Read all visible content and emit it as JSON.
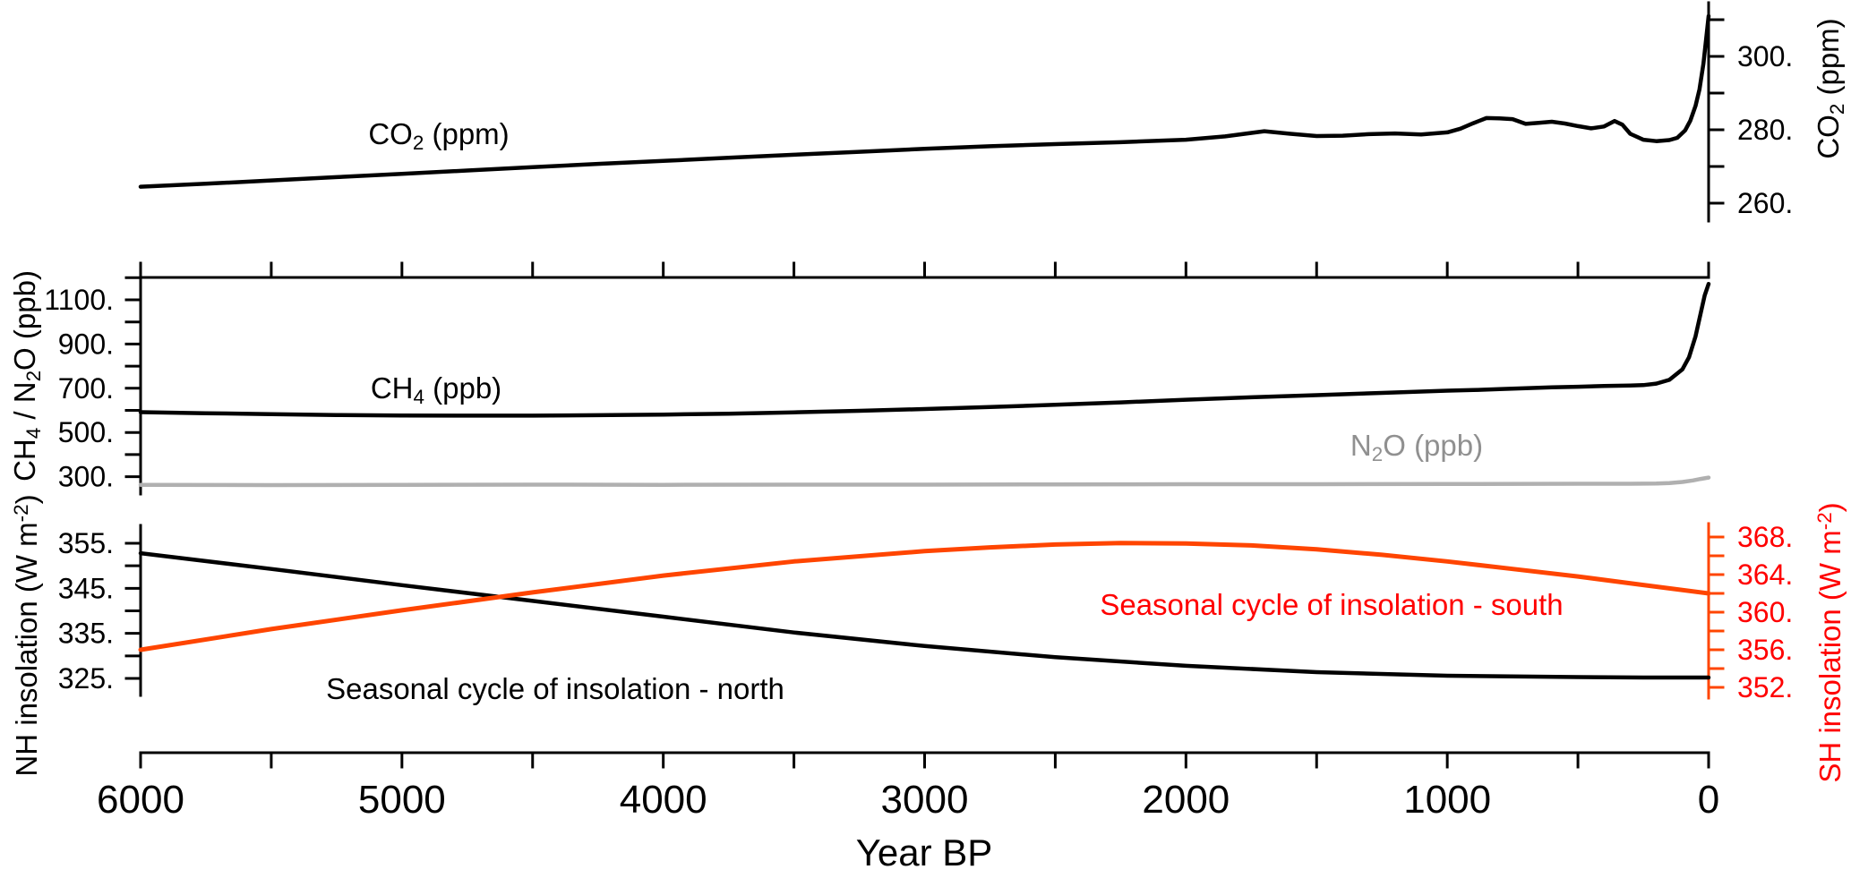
{
  "colors": {
    "black": "#000000",
    "n2o_line": "#b0b0b0",
    "n2o_text": "#909090",
    "red_text": "#ff0000",
    "sh_line": "#ff4500",
    "background": "#ffffff"
  },
  "labels": {
    "co2_series": {
      "pre": "CO",
      "sub": "2",
      "post": " (ppm)"
    },
    "co2_axis": {
      "pre": "CO",
      "sub": "2",
      "post": " (ppm)"
    },
    "ch4_series": {
      "pre": "CH",
      "sub": "4",
      "post": " (ppb)"
    },
    "n2o_series": {
      "pre": "N",
      "sub": "2",
      "post": "O (ppb)"
    },
    "ch4_n2o_axis": {
      "p1": "CH",
      "s1": "4",
      "p2": " / N",
      "s2": "2",
      "p3": "O (ppb)"
    },
    "nh_axis": {
      "pre": "NH insolation (W m",
      "sup": "-2",
      "post": ")"
    },
    "sh_axis": {
      "pre": "SH insolation (W m",
      "sup": "-2",
      "post": ")"
    },
    "north_series": "Seasonal cycle of insolation -  north",
    "south_series": "Seasonal cycle of insolation -  south",
    "x_axis_title": "Year BP"
  },
  "x_axis": {
    "title": "Year BP",
    "range": [
      6000,
      0
    ],
    "direction": "reversed",
    "major_ticks": [
      6000,
      5000,
      4000,
      3000,
      2000,
      1000,
      0
    ],
    "major_labels": [
      "6000",
      "5000",
      "4000",
      "3000",
      "2000",
      "1000",
      "0"
    ],
    "minor_step": 500
  },
  "chart_data": [
    {
      "type": "line",
      "panel": "co2",
      "title": "CO2 (ppm)",
      "y_axis": {
        "side": "right",
        "label": "CO2 (ppm)",
        "range": [
          255,
          315
        ],
        "major_ticks": [
          300,
          280,
          260
        ],
        "major_labels": [
          "300.",
          "280.",
          "260."
        ],
        "minor_ticks": [
          310,
          290,
          270
        ],
        "grid": false
      },
      "series": [
        {
          "name": "CO2 (ppm)",
          "units": "ppm",
          "color": "#000000",
          "points": [
            [
              6000,
              264.5
            ],
            [
              5750,
              265.3
            ],
            [
              5500,
              266.2
            ],
            [
              5250,
              267.1
            ],
            [
              5000,
              268.0
            ],
            [
              4750,
              268.9
            ],
            [
              4500,
              269.8
            ],
            [
              4250,
              270.7
            ],
            [
              4000,
              271.5
            ],
            [
              3750,
              272.4
            ],
            [
              3500,
              273.2
            ],
            [
              3250,
              274.0
            ],
            [
              3000,
              274.8
            ],
            [
              2750,
              275.5
            ],
            [
              2500,
              276.1
            ],
            [
              2250,
              276.6
            ],
            [
              2000,
              277.3
            ],
            [
              1850,
              278.2
            ],
            [
              1700,
              279.6
            ],
            [
              1600,
              278.9
            ],
            [
              1500,
              278.3
            ],
            [
              1400,
              278.4
            ],
            [
              1300,
              278.8
            ],
            [
              1200,
              279.0
            ],
            [
              1100,
              278.7
            ],
            [
              1000,
              279.3
            ],
            [
              950,
              280.3
            ],
            [
              900,
              281.8
            ],
            [
              850,
              283.2
            ],
            [
              800,
              283.1
            ],
            [
              750,
              282.9
            ],
            [
              700,
              281.6
            ],
            [
              650,
              281.9
            ],
            [
              600,
              282.2
            ],
            [
              550,
              281.7
            ],
            [
              500,
              281.0
            ],
            [
              450,
              280.4
            ],
            [
              400,
              280.9
            ],
            [
              360,
              282.4
            ],
            [
              330,
              281.4
            ],
            [
              300,
              278.9
            ],
            [
              250,
              277.3
            ],
            [
              200,
              276.9
            ],
            [
              150,
              277.2
            ],
            [
              120,
              277.8
            ],
            [
              90,
              279.8
            ],
            [
              70,
              282.5
            ],
            [
              50,
              286.5
            ],
            [
              35,
              291.0
            ],
            [
              20,
              298.0
            ],
            [
              10,
              304.5
            ],
            [
              0,
              311.0
            ]
          ]
        }
      ]
    },
    {
      "type": "line",
      "panel": "ch4_n2o",
      "title": "CH4 / N2O (ppb)",
      "y_axis": {
        "side": "left",
        "label": "CH4 / N2O (ppb)",
        "range": [
          220,
          1260
        ],
        "major_ticks": [
          1100,
          900,
          700,
          500,
          300
        ],
        "major_labels": [
          "1100.",
          "900.",
          "700.",
          "500.",
          "300."
        ],
        "minor_ticks": [
          1200,
          1000,
          800,
          600,
          400
        ],
        "grid": false
      },
      "top_border_ticks_every_years": 500,
      "series": [
        {
          "name": "CH4 (ppb)",
          "units": "ppb",
          "color": "#000000",
          "points": [
            [
              6000,
              592
            ],
            [
              5750,
              587
            ],
            [
              5500,
              583
            ],
            [
              5250,
              579
            ],
            [
              5000,
              577
            ],
            [
              4750,
              576
            ],
            [
              4500,
              576
            ],
            [
              4250,
              578
            ],
            [
              4000,
              581
            ],
            [
              3750,
              585
            ],
            [
              3500,
              591
            ],
            [
              3250,
              598
            ],
            [
              3000,
              606
            ],
            [
              2750,
              615
            ],
            [
              2500,
              625
            ],
            [
              2250,
              636
            ],
            [
              2000,
              648
            ],
            [
              1750,
              659
            ],
            [
              1500,
              669
            ],
            [
              1250,
              679
            ],
            [
              1000,
              689
            ],
            [
              900,
              692
            ],
            [
              800,
              696
            ],
            [
              700,
              700
            ],
            [
              600,
              704
            ],
            [
              500,
              707
            ],
            [
              400,
              710
            ],
            [
              300,
              712
            ],
            [
              250,
              714
            ],
            [
              200,
              721
            ],
            [
              150,
              738
            ],
            [
              100,
              786
            ],
            [
              75,
              840
            ],
            [
              50,
              935
            ],
            [
              30,
              1040
            ],
            [
              15,
              1120
            ],
            [
              0,
              1172
            ]
          ]
        },
        {
          "name": "N2O (ppb)",
          "units": "ppb",
          "color": "#b0b0b0",
          "points": [
            [
              6000,
              263
            ],
            [
              5500,
              262
            ],
            [
              5000,
              263
            ],
            [
              4500,
              264
            ],
            [
              4000,
              263
            ],
            [
              3500,
              264
            ],
            [
              3000,
              264
            ],
            [
              2500,
              265
            ],
            [
              2000,
              266
            ],
            [
              1500,
              266
            ],
            [
              1000,
              267
            ],
            [
              500,
              268
            ],
            [
              300,
              268
            ],
            [
              200,
              269
            ],
            [
              150,
              271
            ],
            [
              100,
              276
            ],
            [
              60,
              283
            ],
            [
              30,
              290
            ],
            [
              0,
              296
            ]
          ]
        }
      ]
    },
    {
      "type": "line",
      "panel": "insolation",
      "title": "Seasonal cycle of insolation",
      "y_axis_left": {
        "side": "left",
        "label": "NH insolation (W m-2)",
        "range": [
          321,
          359
        ],
        "major_ticks": [
          355,
          345,
          335,
          325
        ],
        "major_labels": [
          "355.",
          "345.",
          "335.",
          "325."
        ],
        "minor_ticks": [
          350,
          340,
          330
        ],
        "grid": false
      },
      "y_axis_right": {
        "side": "right",
        "label": "SH insolation (W m-2)",
        "range": [
          351,
          369.5
        ],
        "major_ticks": [
          368,
          364,
          360,
          356,
          352
        ],
        "major_labels": [
          "368.",
          "364.",
          "360.",
          "356.",
          "352."
        ],
        "minor_ticks": [
          366,
          362,
          358,
          354
        ],
        "grid": false
      },
      "series": [
        {
          "name": "Seasonal cycle of insolation - north",
          "axis": "left",
          "units": "W m-2",
          "color": "#000000",
          "points": [
            [
              6000,
              352.8
            ],
            [
              5500,
              349.3
            ],
            [
              5000,
              345.7
            ],
            [
              4500,
              342.2
            ],
            [
              4000,
              338.7
            ],
            [
              3500,
              335.2
            ],
            [
              3000,
              332.2
            ],
            [
              2500,
              329.7
            ],
            [
              2000,
              327.8
            ],
            [
              1500,
              326.4
            ],
            [
              1000,
              325.6
            ],
            [
              500,
              325.3
            ],
            [
              250,
              325.2
            ],
            [
              0,
              325.2
            ]
          ]
        },
        {
          "name": "Seasonal cycle of insolation - south",
          "axis": "right",
          "units": "W m-2",
          "color": "#ff4500",
          "points": [
            [
              6000,
              356.0
            ],
            [
              5500,
              358.2
            ],
            [
              5000,
              360.2
            ],
            [
              4500,
              362.1
            ],
            [
              4000,
              363.9
            ],
            [
              3500,
              365.4
            ],
            [
              3000,
              366.5
            ],
            [
              2750,
              366.9
            ],
            [
              2500,
              367.2
            ],
            [
              2250,
              367.35
            ],
            [
              2000,
              367.3
            ],
            [
              1750,
              367.1
            ],
            [
              1500,
              366.7
            ],
            [
              1250,
              366.1
            ],
            [
              1000,
              365.4
            ],
            [
              750,
              364.6
            ],
            [
              500,
              363.8
            ],
            [
              250,
              362.9
            ],
            [
              0,
              362.0
            ]
          ]
        }
      ]
    }
  ]
}
